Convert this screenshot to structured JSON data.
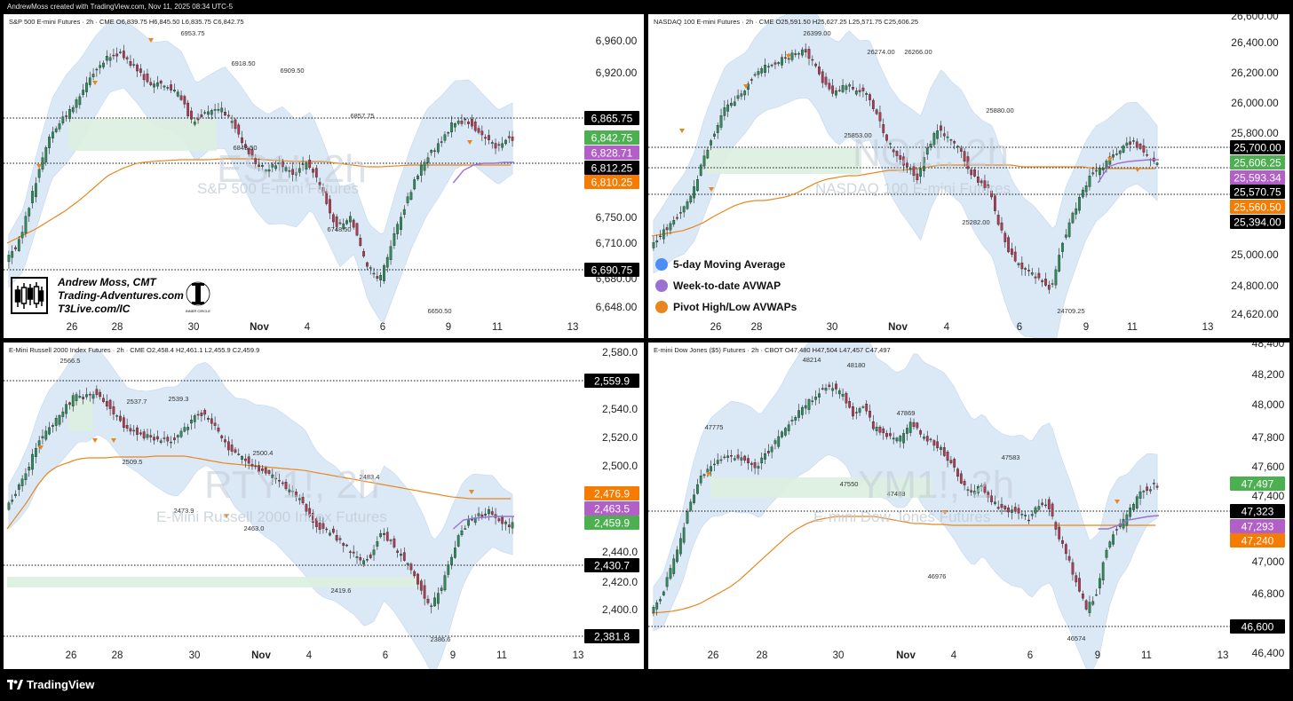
{
  "credit": "AndrewMoss created with TradingView.com, Nov 11, 2025 08:34 UTC-5",
  "footer": {
    "brand": "TradingView",
    "logo_icon": "tradingview-logo-icon"
  },
  "legend": [
    {
      "label": "5-day Moving Average",
      "color": "#4c8df6"
    },
    {
      "label": "Week-to-date AVWAP",
      "color": "#9b72cf"
    },
    {
      "label": "Pivot High/Low AVWAPs",
      "color": "#e8871e"
    }
  ],
  "branding": {
    "line1": "Andrew Moss, CMT",
    "line2": "Trading-Adventures.com",
    "line3": "T3Live.com/IC",
    "badge": "INNER CIRCLE"
  },
  "colors": {
    "up": "#2e8b57",
    "down": "#b03a4e",
    "band": "#dbe8f6",
    "band_edge": "#c4d8ef",
    "pivot_avwap": "#e8871e",
    "wtd_avwap": "#9b72cf",
    "zone": "#dcefe0",
    "green_tag": "#4caf50",
    "purple_tag": "#b25fc7",
    "orange_tag": "#f57c00",
    "black_tag": "#000000"
  },
  "panels": [
    {
      "id": "es",
      "header": "S&P 500 E-mini Futures · 2h · CME  O6,839.75  H6,845.50  L6,835.75  C6,842.75",
      "watermark_symbol": "ES1!, 2h",
      "watermark_name": "S&P 500 E-mini Futures",
      "x_labels": [
        "26",
        "28",
        "30",
        "Nov",
        "4",
        "6",
        "9",
        "11",
        "13"
      ],
      "y_labels": [
        "6,960.00",
        "6,920.00",
        "6,750.00",
        "6,710.00",
        "6,680.00",
        "6,648.00"
      ],
      "price_tags": [
        {
          "text": "6,865.75",
          "kind": "black"
        },
        {
          "text": "6,842.75",
          "kind": "green"
        },
        {
          "text": "6,828.71",
          "kind": "purple"
        },
        {
          "text": "6,812.25",
          "kind": "black"
        },
        {
          "text": "6,810.25",
          "kind": "orange"
        },
        {
          "text": "6,690.75",
          "kind": "black"
        }
      ],
      "annotations": [
        "6953.75",
        "6918.50",
        "6909.50",
        "6857.75",
        "6843.50",
        "6748.50",
        "6650.50"
      ]
    },
    {
      "id": "nq",
      "header": "NASDAQ 100 E-mini Futures · 2h · CME  O25,591.50  H25,627.25  L25,571.75  C25,606.25",
      "watermark_symbol": "NQ1!, 2h",
      "watermark_name": "NASDAQ 100 E-mini Futures",
      "x_labels": [
        "26",
        "28",
        "30",
        "Nov",
        "4",
        "6",
        "9",
        "11",
        "13"
      ],
      "y_labels": [
        "26,600.00",
        "26,400.00",
        "26,200.00",
        "26,000.00",
        "25,800.00",
        "25,000.00",
        "24,800.00",
        "24,620.00"
      ],
      "price_tags": [
        {
          "text": "25,700.00",
          "kind": "black"
        },
        {
          "text": "25,606.25",
          "kind": "green"
        },
        {
          "text": "25,593.34",
          "kind": "purple"
        },
        {
          "text": "25,570.75",
          "kind": "black"
        },
        {
          "text": "25,560.50",
          "kind": "orange"
        },
        {
          "text": "25,394.00",
          "kind": "black"
        }
      ],
      "annotations": [
        "26399.00",
        "26274.00",
        "26266.00",
        "25880.00",
        "25853.00",
        "25282.00",
        "24709.25"
      ]
    },
    {
      "id": "rty",
      "header": "E-Mini Russell 2000 Index Futures · 2h · CME  O2,458.4  H2,461.1  L2,455.9  C2,459.9",
      "watermark_symbol": "RTY1!, 2h",
      "watermark_name": "E-Mini Russell 2000 Index Futures",
      "x_labels": [
        "26",
        "28",
        "30",
        "Nov",
        "4",
        "6",
        "9",
        "11",
        "13"
      ],
      "y_labels": [
        "2,580.0",
        "2,540.0",
        "2,520.0",
        "2,500.0",
        "2,440.0",
        "2,420.0",
        "2,400.0"
      ],
      "price_tags": [
        {
          "text": "2,559.9",
          "kind": "black"
        },
        {
          "text": "2,476.9",
          "kind": "orange"
        },
        {
          "text": "2,463.5",
          "kind": "purple"
        },
        {
          "text": "2,459.9",
          "kind": "green"
        },
        {
          "text": "2,430.7",
          "kind": "black"
        },
        {
          "text": "2,381.8",
          "kind": "black"
        }
      ],
      "annotations": [
        "2566.5",
        "2537.7",
        "2539.3",
        "2509.5",
        "2500.4",
        "2483.4",
        "2473.9",
        "2463.0",
        "2419.6",
        "2386.6"
      ]
    },
    {
      "id": "ym",
      "header": "E-mini Dow Jones ($5) Futures · 2h · CBOT  O47,480  H47,504  L47,457  C47,497",
      "watermark_symbol": "YM1!, 2h",
      "watermark_name": "E-mini Dow Jones Futures",
      "x_labels": [
        "26",
        "28",
        "30",
        "Nov",
        "4",
        "6",
        "9",
        "11",
        "13"
      ],
      "y_labels": [
        "48,400",
        "48,200",
        "48,000",
        "47,800",
        "47,600",
        "47,400",
        "47,000",
        "46,800",
        "46,400"
      ],
      "price_tags": [
        {
          "text": "47,497",
          "kind": "green"
        },
        {
          "text": "47,323",
          "kind": "black"
        },
        {
          "text": "47,293",
          "kind": "purple"
        },
        {
          "text": "47,240",
          "kind": "orange"
        },
        {
          "text": "46,600",
          "kind": "black"
        }
      ],
      "annotations": [
        "48214",
        "48180",
        "47869",
        "47775",
        "47583",
        "47550",
        "47488",
        "46976",
        "46574"
      ]
    }
  ]
}
